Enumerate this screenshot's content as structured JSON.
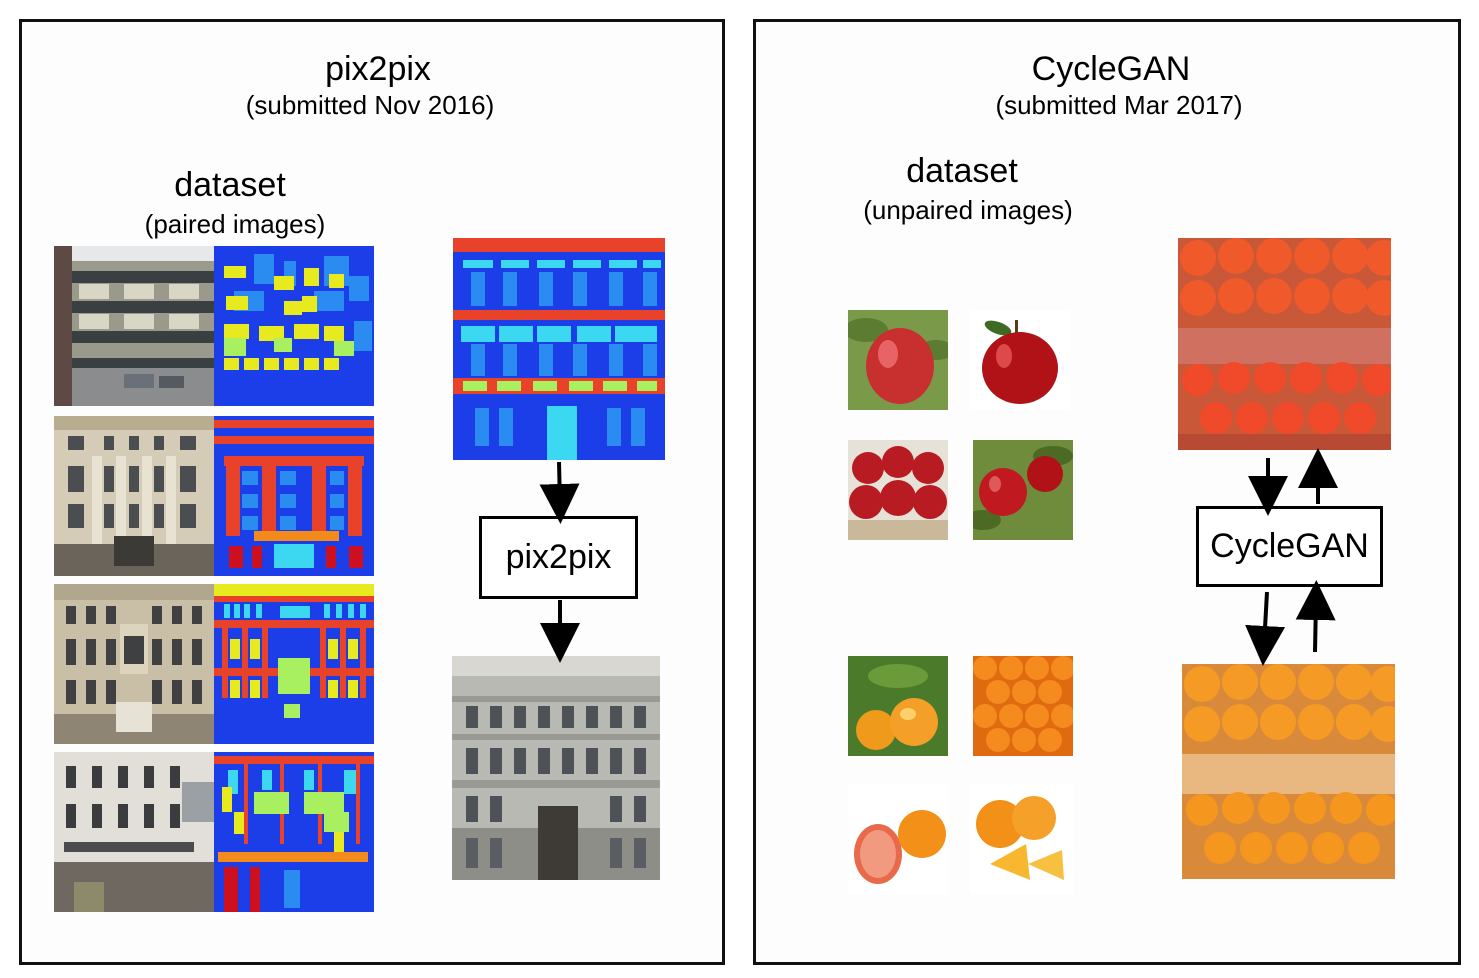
{
  "left_panel": {
    "title": "pix2pix",
    "subtitle": "(submitted Nov 2016)",
    "dataset_label": "dataset",
    "dataset_sublabel": "(paired images)",
    "model_box_label": "pix2pix",
    "images": [
      "facade-photo",
      "facade-label-map",
      "generated-facade-photo"
    ]
  },
  "right_panel": {
    "title": "CycleGAN",
    "subtitle": "(submitted Mar 2017)",
    "dataset_label": "dataset",
    "dataset_sublabel": "(unpaired images)",
    "model_box_label": "CycleGAN",
    "images": [
      "apple-photo",
      "orange-photo",
      "orange-crate-photo"
    ]
  },
  "colors": {
    "label_blue": "#1c3ee8",
    "label_red": "#e8432a",
    "label_cyan": "#3cd7f0",
    "label_yellow": "#e6ea1e",
    "label_green": "#a8f060",
    "apple_red": "#c81e24",
    "orange": "#f28a1c"
  }
}
